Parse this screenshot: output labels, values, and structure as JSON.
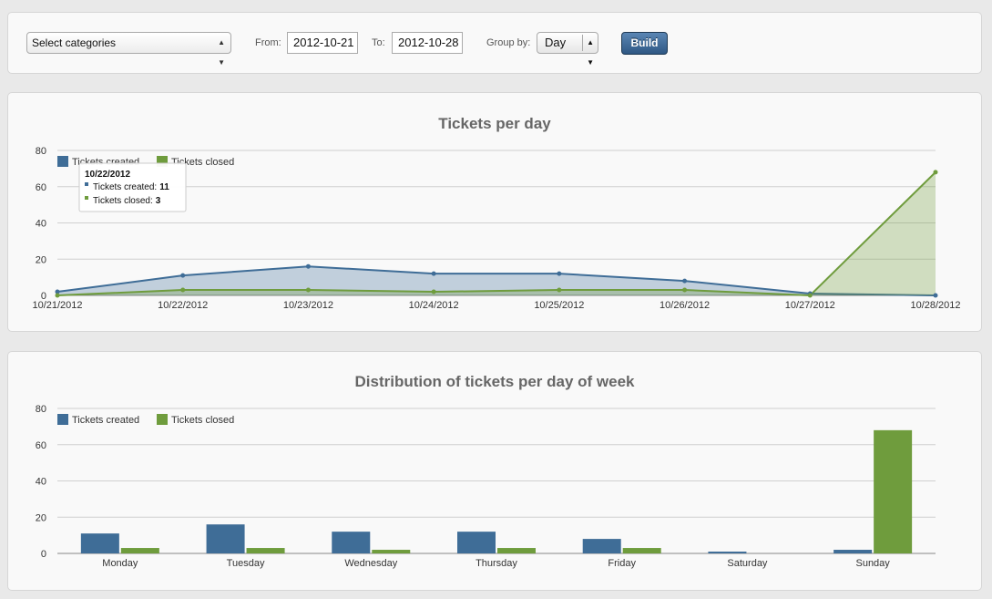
{
  "toolbar": {
    "categories_select": "Select categories",
    "from_label": "From:",
    "from_value": "2012-10-21",
    "to_label": "To:",
    "to_value": "2012-10-28",
    "group_by_label": "Group by:",
    "group_by_value": "Day",
    "build_label": "Build"
  },
  "colors": {
    "created": "#3f6d97",
    "closed": "#6f9c3d"
  },
  "chart_data": [
    {
      "type": "area",
      "title": "Tickets per day",
      "categories": [
        "10/21/2012",
        "10/22/2012",
        "10/23/2012",
        "10/24/2012",
        "10/25/2012",
        "10/26/2012",
        "10/27/2012",
        "10/28/2012"
      ],
      "series": [
        {
          "name": "Tickets created",
          "values": [
            2,
            11,
            16,
            12,
            12,
            8,
            1,
            0
          ]
        },
        {
          "name": "Tickets closed",
          "values": [
            0,
            3,
            3,
            2,
            3,
            3,
            0,
            68
          ]
        }
      ],
      "ylim": [
        0,
        80
      ],
      "yticks": [
        "0",
        "20",
        "40",
        "60",
        "80"
      ],
      "grid": true,
      "legend": "top-left",
      "tooltip": {
        "title": "10/22/2012",
        "created_label": "Tickets created:",
        "created_value": "11",
        "closed_label": "Tickets closed:",
        "closed_value": "3"
      }
    },
    {
      "type": "bar",
      "title": "Distribution of tickets per day of week",
      "categories": [
        "Monday",
        "Tuesday",
        "Wednesday",
        "Thursday",
        "Friday",
        "Saturday",
        "Sunday"
      ],
      "series": [
        {
          "name": "Tickets created",
          "values": [
            11,
            16,
            12,
            12,
            8,
            1,
            2
          ]
        },
        {
          "name": "Tickets closed",
          "values": [
            3,
            3,
            2,
            3,
            3,
            0,
            68
          ]
        }
      ],
      "ylim": [
        0,
        80
      ],
      "yticks": [
        "0",
        "20",
        "40",
        "60",
        "80"
      ],
      "grid": true,
      "legend": "top-left"
    }
  ]
}
